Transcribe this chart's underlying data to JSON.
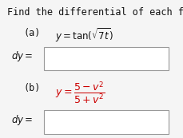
{
  "title": "Find the differential of each function.",
  "part_a_label": "(a)",
  "part_a_math": "$y = \\tan(\\sqrt{7t})$",
  "part_b_label": "(b)",
  "part_b_math": "$y = \\dfrac{5 - v^2}{5 + v^2}$",
  "dy_label": "$dy =$",
  "bg_color": "#f5f5f5",
  "box_facecolor": "#ffffff",
  "box_edgecolor": "#999999",
  "text_color": "#111111",
  "red_color": "#cc0000",
  "title_fontsize": 8.5,
  "body_fontsize": 8.5,
  "label_fontsize": 8.5
}
